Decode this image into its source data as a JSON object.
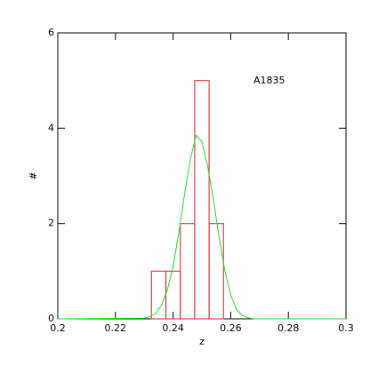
{
  "chart_data": {
    "type": "histogram",
    "annotation": "A1835",
    "xlabel": "z",
    "ylabel": "#",
    "bins": [
      0.2325,
      0.2375,
      0.2425,
      0.2475,
      0.2525,
      0.2575
    ],
    "values": [
      1,
      1,
      2,
      5,
      2
    ],
    "color": "#e0404a",
    "curve": {
      "type": "line",
      "color": "#22dd22",
      "x": [
        0.2,
        0.23,
        0.232,
        0.234,
        0.236,
        0.238,
        0.24,
        0.242,
        0.244,
        0.246,
        0.248,
        0.25,
        0.252,
        0.254,
        0.256,
        0.258,
        0.26,
        0.262,
        0.264,
        0.266,
        0.268,
        0.3
      ],
      "values": [
        0,
        0.015,
        0.045,
        0.12,
        0.29,
        0.6,
        1.1,
        1.81,
        2.62,
        3.35,
        3.85,
        3.72,
        3.2,
        2.5,
        1.7,
        1.0,
        0.5,
        0.2,
        0.07,
        0.02,
        0,
        0
      ]
    },
    "xlim": [
      0.2,
      0.3
    ],
    "xticks": [
      0.2,
      0.22,
      0.24,
      0.26,
      0.28,
      0.3
    ],
    "ylim": [
      0,
      6
    ],
    "yticks": [
      0,
      2,
      4,
      6
    ]
  }
}
